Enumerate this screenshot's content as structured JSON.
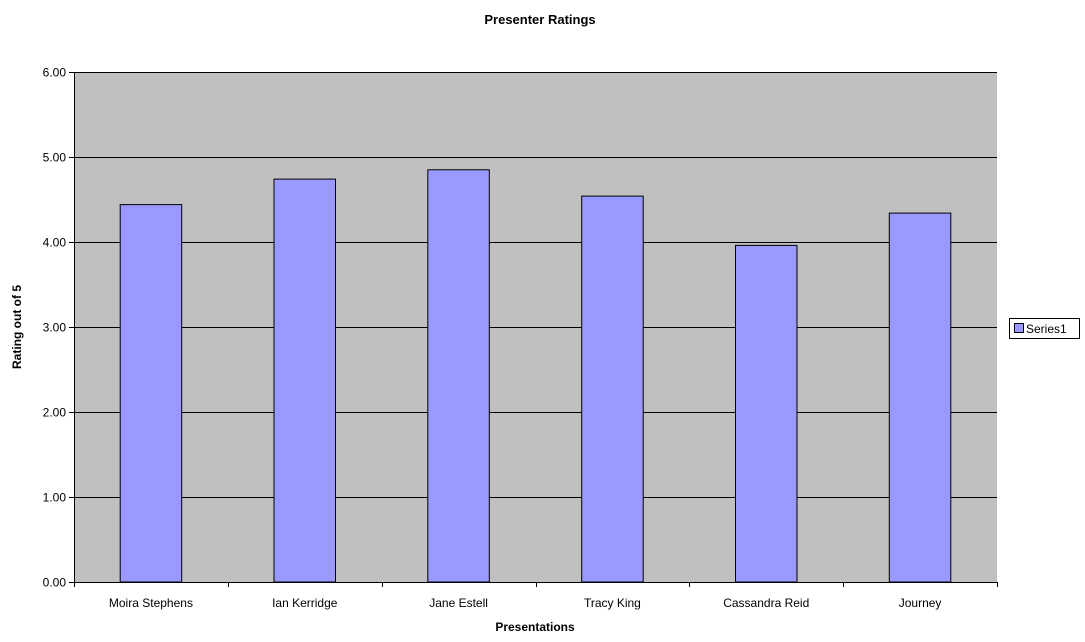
{
  "chart_data": {
    "type": "bar",
    "title": "Presenter Ratings",
    "xlabel": "Presentations",
    "ylabel": "Rating out of 5",
    "categories": [
      "Moira Stephens",
      "Ian Kerridge",
      "Jane Estell",
      "Tracy King",
      "Cassandra Reid",
      "Journey"
    ],
    "series": [
      {
        "name": "Series1",
        "values": [
          4.44,
          4.74,
          4.85,
          4.54,
          3.96,
          4.34
        ],
        "color": "#9999ff"
      }
    ],
    "ylim": [
      0,
      6
    ],
    "yticks": [
      "0.00",
      "1.00",
      "2.00",
      "3.00",
      "4.00",
      "5.00",
      "6.00"
    ],
    "grid": true,
    "legend_position": "right",
    "plot_background": "#c0c0c0"
  }
}
